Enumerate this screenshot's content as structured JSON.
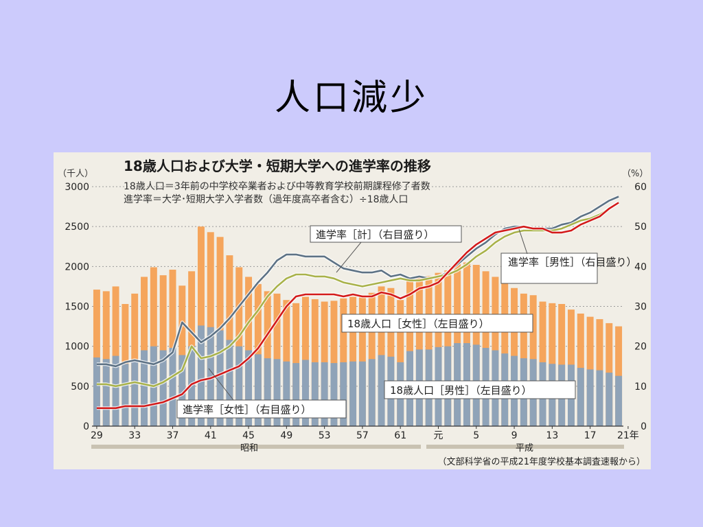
{
  "slide": {
    "title": "人口減少"
  },
  "colors": {
    "background": "#cccbfc",
    "panel": "#f1eee6",
    "female_bar": "#f5a55c",
    "male_bar": "#8fa3b8",
    "rate_total": "#5d7285",
    "rate_male": "#a9b24a",
    "rate_female": "#d31a1a",
    "era_band": "#c9c2b2"
  },
  "chart_data": {
    "type": "bar",
    "title": "18歳人口および大学・短期大学への進学率の推移",
    "definitions": [
      "18歳人口＝3年前の中学校卒業者および中等教育学校前期課程修了者数",
      "進学率＝大学･短期大学入学者数（過年度高卒者含む）÷18歳人口"
    ],
    "ylabel_left": "（千人）",
    "ylabel_right": "（%）",
    "ylim_left": [
      0,
      3000
    ],
    "ylim_right": [
      0,
      60
    ],
    "yticks_left": [
      "0",
      "500",
      "1000",
      "1500",
      "2000",
      "2500",
      "3000"
    ],
    "yticks_right": [
      "0",
      "10",
      "20",
      "30",
      "40",
      "50",
      "60"
    ],
    "xtick_labels": [
      "29",
      "33",
      "37",
      "41",
      "45",
      "49",
      "53",
      "57",
      "61",
      "元",
      "5",
      "9",
      "13",
      "17",
      "21年"
    ],
    "eras": [
      "昭和",
      "平成"
    ],
    "source": "（文部科学省の平成21年度学校基本調査速報から）",
    "grid": true,
    "categories": [
      "昭和29",
      "30",
      "31",
      "32",
      "33",
      "34",
      "35",
      "36",
      "37",
      "38",
      "39",
      "40",
      "41",
      "42",
      "43",
      "44",
      "45",
      "46",
      "47",
      "48",
      "49",
      "50",
      "51",
      "52",
      "53",
      "54",
      "55",
      "56",
      "57",
      "58",
      "59",
      "60",
      "61",
      "62",
      "63",
      "平成元",
      "2",
      "3",
      "4",
      "5",
      "6",
      "7",
      "8",
      "9",
      "10",
      "11",
      "12",
      "13",
      "14",
      "15",
      "16",
      "17",
      "18",
      "19",
      "20",
      "21"
    ],
    "series": [
      {
        "name": "18歳人口［男性］（左目盛り）",
        "axis": "left",
        "kind": "bar",
        "values": [
          860,
          840,
          880,
          780,
          830,
          950,
          1000,
          950,
          980,
          890,
          1000,
          1260,
          1240,
          1200,
          1080,
          1000,
          950,
          900,
          850,
          840,
          810,
          790,
          830,
          800,
          800,
          790,
          800,
          810,
          810,
          840,
          890,
          870,
          800,
          940,
          960,
          960,
          990,
          1000,
          1040,
          1040,
          1020,
          980,
          950,
          910,
          880,
          850,
          840,
          800,
          780,
          770,
          770,
          730,
          710,
          700,
          670,
          630
        ]
      },
      {
        "name": "18歳人口［女性］（左目盛り）",
        "axis": "left",
        "kind": "bar",
        "values": [
          1710,
          1690,
          1750,
          1530,
          1660,
          1870,
          1990,
          1890,
          1960,
          1760,
          1940,
          2500,
          2430,
          2370,
          2140,
          1990,
          1870,
          1780,
          1690,
          1660,
          1580,
          1540,
          1620,
          1590,
          1560,
          1570,
          1600,
          1620,
          1640,
          1670,
          1750,
          1730,
          1580,
          1830,
          1870,
          1880,
          1920,
          1950,
          2030,
          2050,
          2020,
          1940,
          1870,
          1790,
          1730,
          1660,
          1640,
          1560,
          1540,
          1530,
          1460,
          1410,
          1370,
          1340,
          1290,
          1250
        ]
      },
      {
        "name": "進学率［計］（右目盛り）",
        "axis": "right",
        "kind": "line",
        "values": [
          15.5,
          15.5,
          15.0,
          16.0,
          16.5,
          16.0,
          15.5,
          16.5,
          18.5,
          26.0,
          23.5,
          21.0,
          22.5,
          24.5,
          27.0,
          30.0,
          33.0,
          36.0,
          38.5,
          41.5,
          43.0,
          43.0,
          42.5,
          42.5,
          42.5,
          41.0,
          39.5,
          39.0,
          38.5,
          38.5,
          39.0,
          37.5,
          38.0,
          37.0,
          37.5,
          37.0,
          37.5,
          38.5,
          40.5,
          42.5,
          44.5,
          46.0,
          48.0,
          49.5,
          50.0,
          50.0,
          49.5,
          49.5,
          49.5,
          50.5,
          51.0,
          52.5,
          53.5,
          55.0,
          56.5,
          57.5
        ]
      },
      {
        "name": "進学率［男性］（右目盛り）",
        "axis": "right",
        "kind": "line",
        "values": [
          10.5,
          10.5,
          10.0,
          10.5,
          11.0,
          10.5,
          10.0,
          11.0,
          12.5,
          14.0,
          20.0,
          17.0,
          17.5,
          18.5,
          20.0,
          22.5,
          26.0,
          29.0,
          32.5,
          35.0,
          37.0,
          38.0,
          38.0,
          37.5,
          37.5,
          37.0,
          36.0,
          35.5,
          35.0,
          35.5,
          36.0,
          36.5,
          37.0,
          36.5,
          36.5,
          37.0,
          37.5,
          38.0,
          39.0,
          40.5,
          42.5,
          44.0,
          46.0,
          47.5,
          48.5,
          49.0,
          49.0,
          49.0,
          49.0,
          49.5,
          50.5,
          51.5,
          52.0,
          53.0,
          54.5,
          56.0
        ]
      },
      {
        "name": "進学率［女性］（右目盛り）",
        "axis": "right",
        "kind": "line",
        "values": [
          4.5,
          4.5,
          4.5,
          5.0,
          5.0,
          5.0,
          5.5,
          6.0,
          7.0,
          8.0,
          10.5,
          11.5,
          12.0,
          13.0,
          14.0,
          15.0,
          17.0,
          19.5,
          23.0,
          26.5,
          30.0,
          32.5,
          33.0,
          33.0,
          33.0,
          33.0,
          32.5,
          33.0,
          32.5,
          32.5,
          33.5,
          33.0,
          32.0,
          33.0,
          34.5,
          35.0,
          36.0,
          38.5,
          41.0,
          43.5,
          45.5,
          47.0,
          48.5,
          49.0,
          49.5,
          50.0,
          49.5,
          49.5,
          48.5,
          48.5,
          49.0,
          50.5,
          51.5,
          52.5,
          54.5,
          56.0
        ]
      }
    ],
    "annotations": [
      "進学率［計］（右目盛り）",
      "進学率［男性］（右目盛り）",
      "18歳人口［女性］（左目盛り）",
      "18歳人口［男性］（左目盛り）",
      "進学率［女性］（右目盛り）"
    ]
  }
}
